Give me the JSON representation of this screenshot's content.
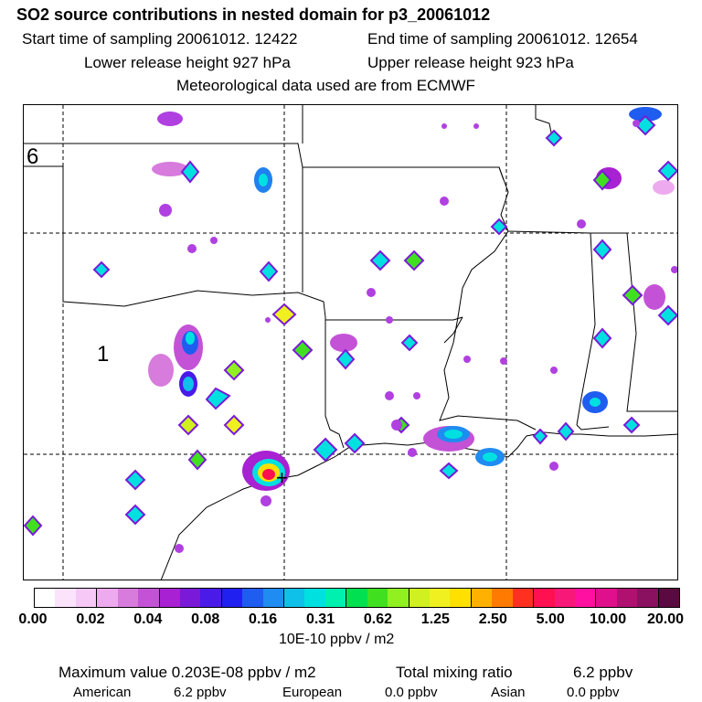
{
  "title": "SO2 source contributions in nested domain for p3_20061012",
  "header": {
    "start_label": "Start time of sampling 20061012. 12422",
    "end_label": "End time of sampling 20061012. 12654",
    "lower_label": "Lower release height  927 hPa",
    "upper_label": "Upper release height  923 hPa",
    "met_label": "Meteorological data used are from ECMWF"
  },
  "map": {
    "region_labels": [
      "6",
      "1"
    ],
    "max_marker": "+"
  },
  "colorbar": {
    "colors": [
      "#ffffff",
      "#fbe3fb",
      "#f5c8f5",
      "#eeaaee",
      "#d77bdd",
      "#c452d6",
      "#a821d2",
      "#7a1ad8",
      "#4a1ae8",
      "#2020f0",
      "#1f5cf0",
      "#1e8cf0",
      "#0fc0e8",
      "#00e0e0",
      "#00f0b0",
      "#00e050",
      "#40e020",
      "#90f020",
      "#d0f020",
      "#f0f020",
      "#ffe000",
      "#ffb000",
      "#ff7a00",
      "#ff3020",
      "#ff1050",
      "#f81878",
      "#ff10a0",
      "#e0108c",
      "#b01070",
      "#8a1060",
      "#5a0a40"
    ],
    "tick_labels": [
      "0.00",
      "0.02",
      "0.04",
      "0.08",
      "0.16",
      "0.31",
      "0.62",
      "1.25",
      "2.50",
      "5.00",
      "10.00",
      "20.00"
    ],
    "unit": "10E-10 ppbv / m2"
  },
  "footer": {
    "max_value": "Maximum value  0.203E-08 ppbv / m2",
    "total_label": "Total mixing ratio",
    "total_value": "6.2 ppbv",
    "american_label": "American",
    "american_value": "6.2 ppbv",
    "european_label": "European",
    "european_value": "0.0 ppbv",
    "asian_label": "Asian",
    "asian_value": "0.0 ppbv"
  }
}
